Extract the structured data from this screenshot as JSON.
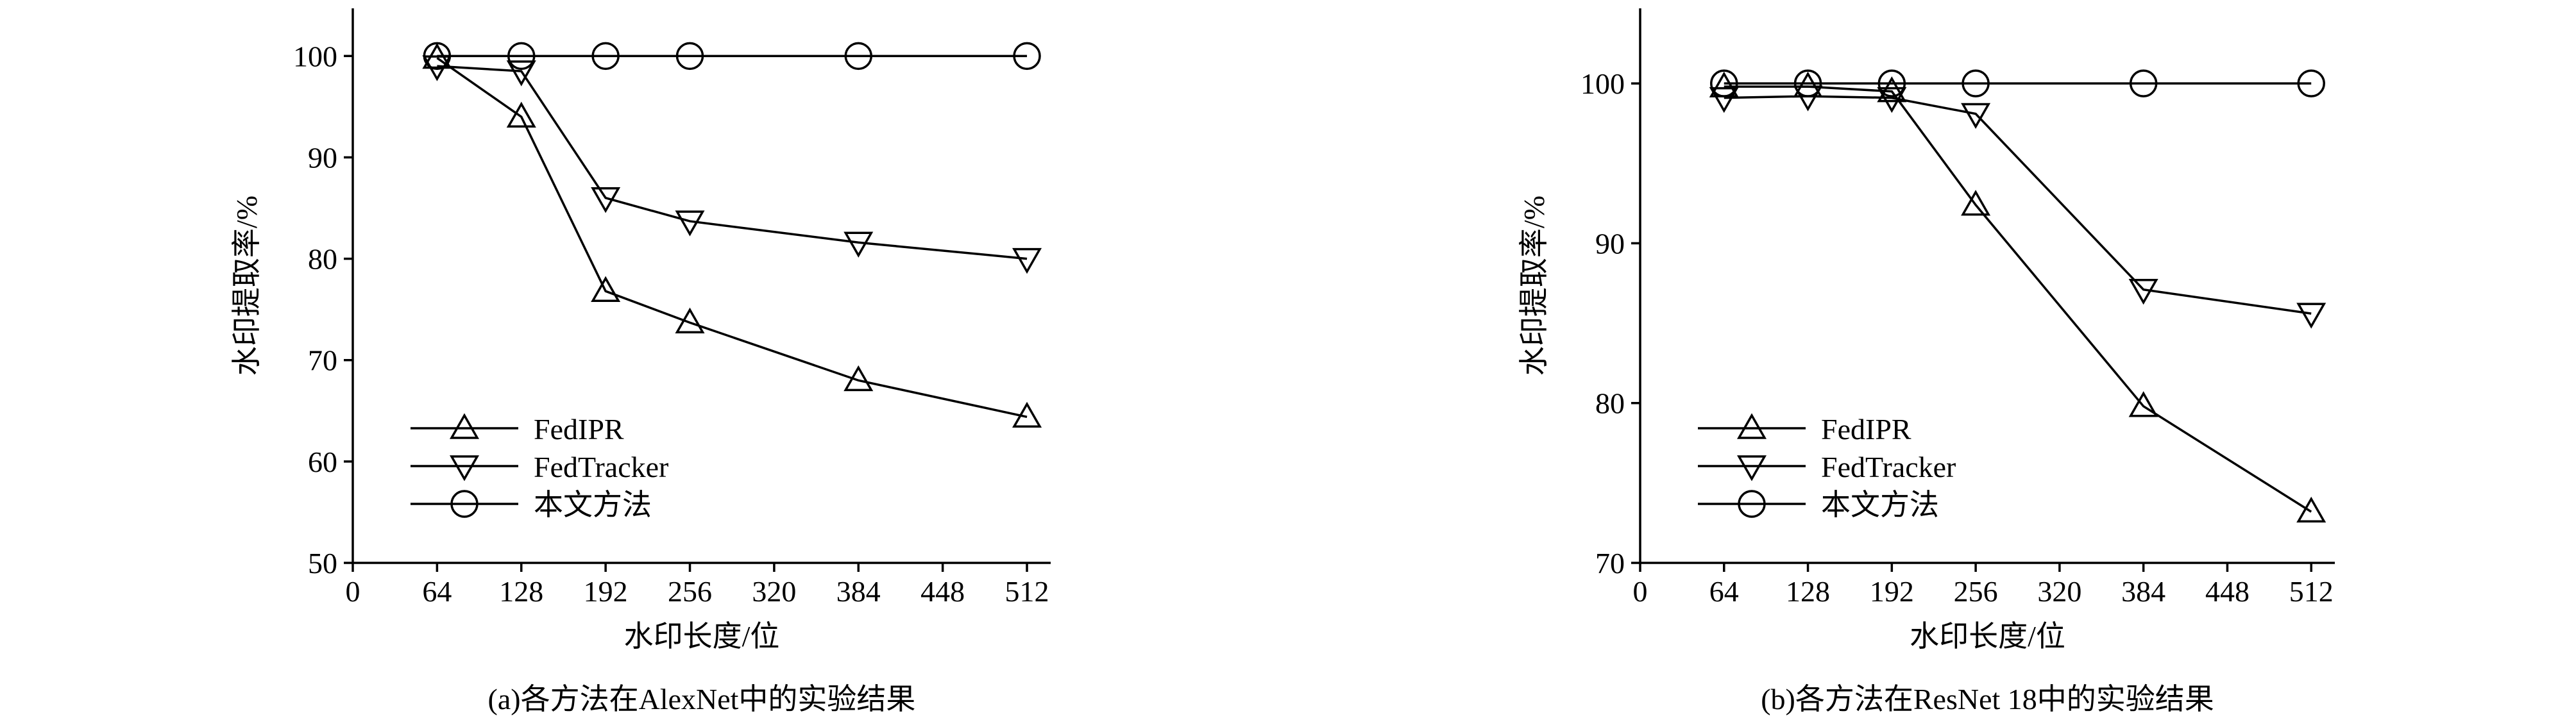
{
  "chart_data": [
    {
      "type": "line",
      "caption": "(a)各方法在AlexNet中的实验结果",
      "x_label": "水印长度/位",
      "y_label": "水印提取率/%",
      "x": [
        64,
        128,
        192,
        256,
        384,
        512
      ],
      "xlim": [
        0,
        530
      ],
      "xticks": [
        0,
        64,
        128,
        192,
        256,
        320,
        384,
        448,
        512
      ],
      "ylim": [
        50,
        104.7
      ],
      "yticks": [
        50,
        60,
        70,
        80,
        90,
        100
      ],
      "legend": "lower left",
      "series": [
        {
          "name": "FedIPR",
          "color": "#000000",
          "marker": "triangle-up",
          "values": [
            99.8,
            94,
            76.8,
            73.7,
            68,
            64.4
          ]
        },
        {
          "name": "FedTracker",
          "color": "#000000",
          "marker": "triangle-down",
          "values": [
            99,
            98.5,
            86,
            83.7,
            81.6,
            80
          ]
        },
        {
          "name": "本文方法",
          "color": "#000000",
          "marker": "circle",
          "values": [
            100,
            100,
            100,
            100,
            100,
            100
          ]
        }
      ]
    },
    {
      "type": "line",
      "caption": "(b)各方法在ResNet 18中的实验结果",
      "x_label": "水印长度/位",
      "y_label": "水印提取率/%",
      "x": [
        64,
        128,
        192,
        256,
        384,
        512
      ],
      "xlim": [
        0,
        530
      ],
      "xticks": [
        0,
        64,
        128,
        192,
        256,
        320,
        384,
        448,
        512
      ],
      "ylim": [
        70,
        104.7
      ],
      "yticks": [
        70,
        80,
        90,
        100
      ],
      "legend": "lower left",
      "series": [
        {
          "name": "FedIPR",
          "color": "#000000",
          "marker": "triangle-up",
          "values": [
            99.8,
            99.8,
            99.5,
            92.4,
            79.8,
            73.2
          ]
        },
        {
          "name": "FedTracker",
          "color": "#000000",
          "marker": "triangle-down",
          "values": [
            99.1,
            99.2,
            99.1,
            98.1,
            87.1,
            85.6
          ]
        },
        {
          "name": "本文方法",
          "color": "#000000",
          "marker": "circle",
          "values": [
            100,
            100,
            100,
            100,
            100,
            100
          ]
        }
      ]
    }
  ]
}
